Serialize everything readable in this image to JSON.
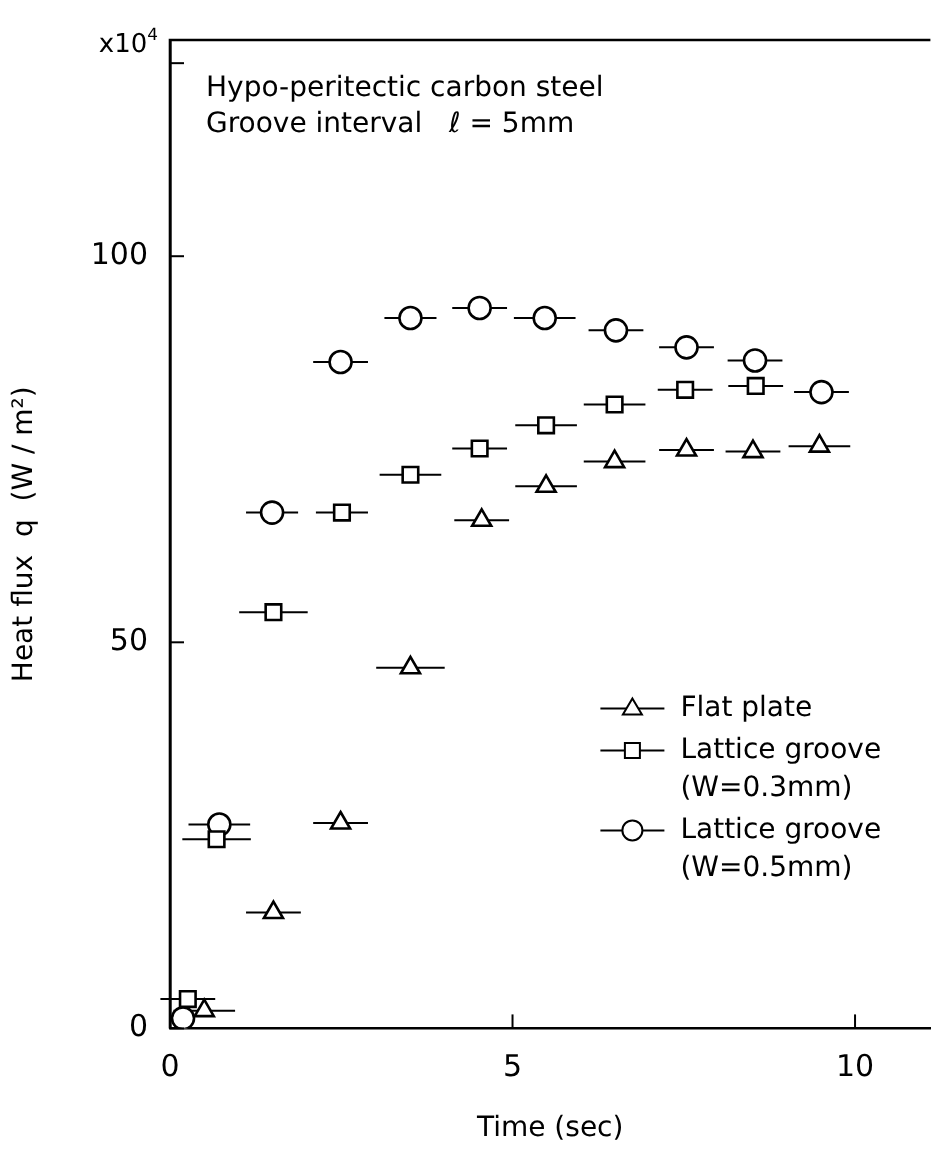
{
  "chart_data": {
    "type": "scatter",
    "xlabel": "Time (sec)",
    "ylabel": "Heat flux  q  (W / m²)",
    "annotations": [
      "x10$^{4}$",
      "Hypo-peritectic carbon steel",
      "Groove interval   ℓ = 5mm"
    ],
    "xlim": [
      0,
      11.1
    ],
    "xticks": [
      0,
      5,
      10
    ],
    "ylim": [
      0,
      128
    ],
    "yticks": [
      0,
      50,
      100,
      {
        "value": 125,
        "label": null
      }
    ],
    "grid": false,
    "legend": "right",
    "series": [
      {
        "name": "Flat plate",
        "color": "#000000",
        "marker": "triangle",
        "x": [
          0.5,
          1.51,
          2.49,
          3.51,
          4.55,
          5.49,
          6.49,
          7.54,
          8.51,
          9.48
        ],
        "values": [
          2.3,
          15.0,
          26.6,
          46.7,
          65.8,
          70.2,
          73.4,
          74.9,
          74.7,
          75.4
        ],
        "xerrors": [
          0.45,
          0.4,
          0.4,
          0.5,
          0.4,
          0.45,
          0.45,
          0.4,
          0.4,
          0.45
        ]
      },
      {
        "name": "Lattice groove (W=0.3mm)",
        "color": "#000000",
        "marker": "square",
        "x": [
          0.26,
          0.68,
          1.51,
          2.51,
          3.51,
          4.52,
          5.49,
          6.49,
          7.52,
          8.55
        ],
        "values": [
          3.8,
          24.5,
          53.9,
          66.8,
          71.7,
          75.1,
          78.1,
          80.8,
          82.7,
          83.2
        ],
        "xerrors": [
          0.4,
          0.5,
          0.5,
          0.38,
          0.45,
          0.4,
          0.45,
          0.45,
          0.4,
          0.4
        ]
      },
      {
        "name": "Lattice groove (W=0.5mm)",
        "color": "#000000",
        "marker": "circle",
        "x": [
          0.19,
          0.72,
          1.49,
          2.49,
          3.51,
          4.52,
          5.47,
          6.51,
          7.54,
          8.54,
          9.51
        ],
        "values": [
          1.3,
          26.4,
          66.8,
          86.3,
          92.0,
          93.3,
          92.0,
          90.4,
          88.2,
          86.5,
          82.4
        ],
        "xerrors": [
          null,
          0.45,
          0.38,
          0.4,
          0.38,
          0.4,
          0.45,
          0.4,
          0.4,
          0.4,
          0.4
        ]
      }
    ]
  }
}
